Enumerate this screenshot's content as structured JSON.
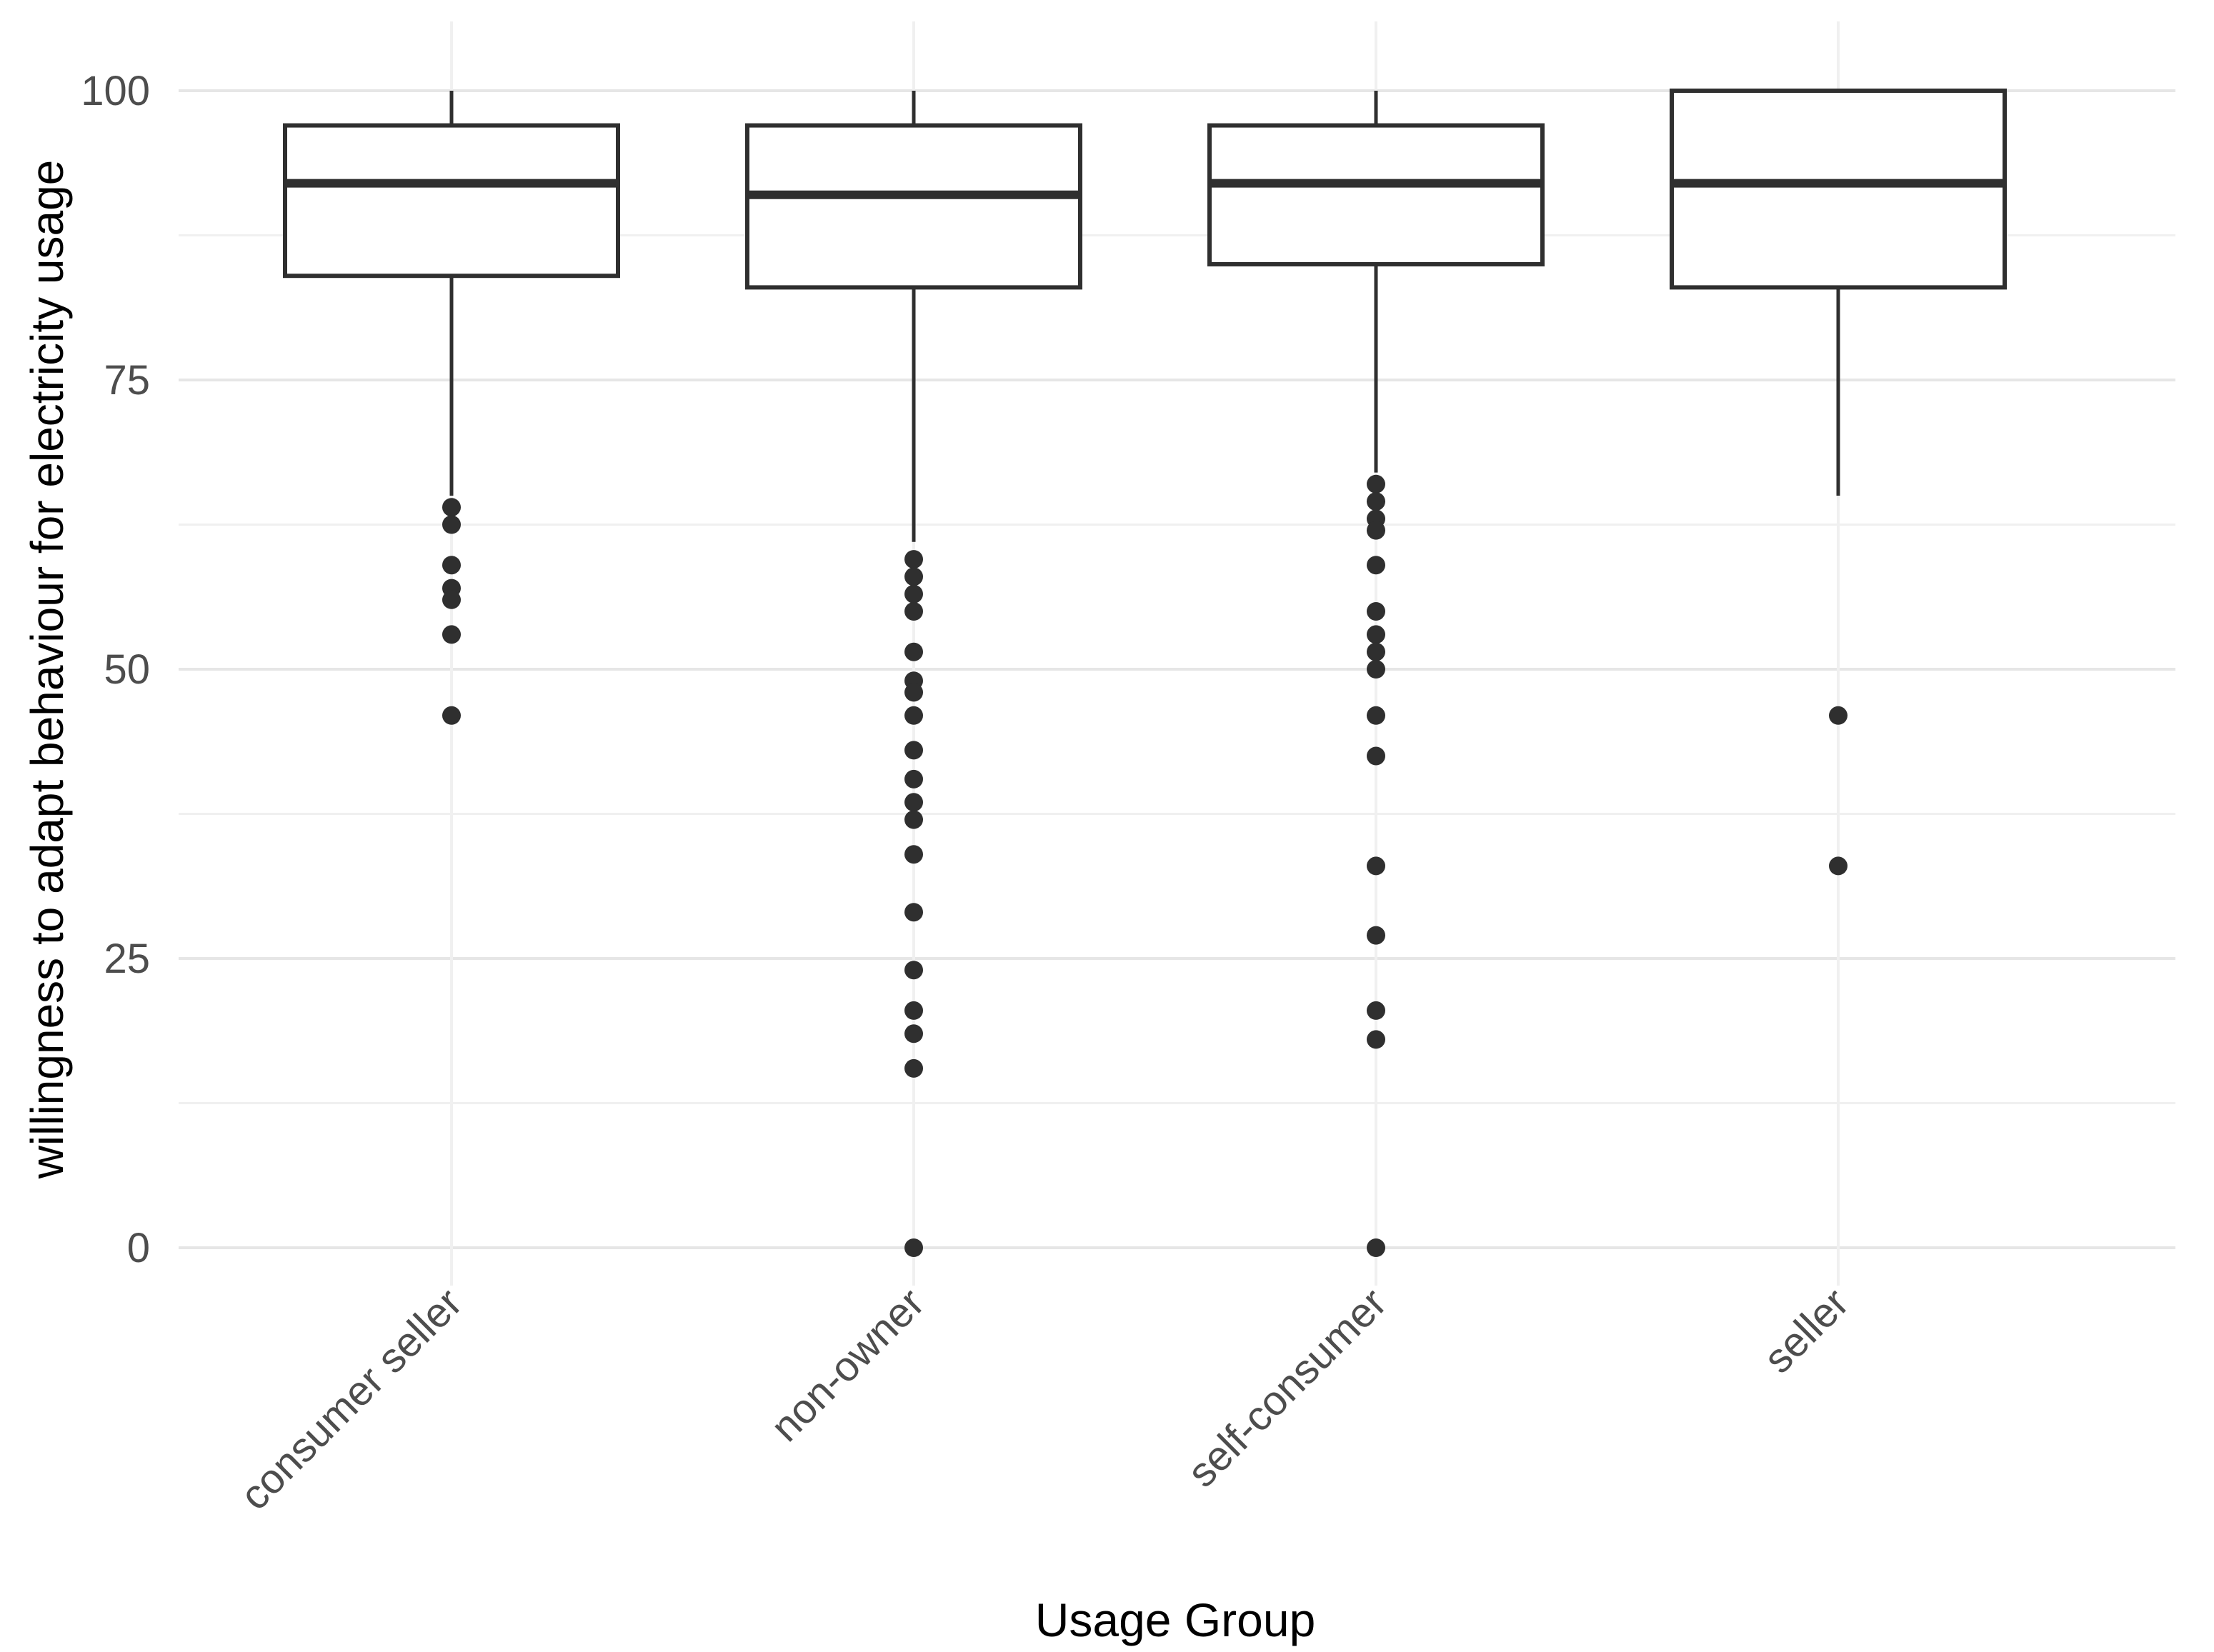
{
  "chart_data": {
    "type": "boxplot",
    "title": "",
    "xlabel": "Usage Group",
    "ylabel": "willingness to adapt behaviour for electricity usage",
    "ylim": [
      0,
      100
    ],
    "y_ticks": [
      0,
      25,
      50,
      75,
      100
    ],
    "y_minor_gridlines": [
      12.5,
      37.5,
      62.5,
      87.5
    ],
    "grid": "major-and-minor, horizontal only, plus faint vertical line per category",
    "legend": "none",
    "categories": [
      "consumer seller",
      "non-owner",
      "self-consumer",
      "seller"
    ],
    "groups": [
      {
        "label": "consumer seller",
        "q1": 84,
        "median": 92,
        "q3": 97,
        "whisker_low": 65,
        "whisker_high": 100,
        "outliers": [
          64,
          62.5,
          59,
          57,
          56,
          53,
          46
        ]
      },
      {
        "label": "non-owner",
        "q1": 83,
        "median": 91,
        "q3": 97,
        "whisker_low": 61,
        "whisker_high": 100,
        "outliers": [
          59.5,
          58,
          56.5,
          55,
          51.5,
          49,
          48,
          46,
          43,
          40.5,
          38.5,
          37,
          34,
          29,
          24,
          20.5,
          18.5,
          15.5,
          0
        ]
      },
      {
        "label": "self-consumer",
        "q1": 85,
        "median": 92,
        "q3": 97,
        "whisker_low": 67,
        "whisker_high": 100,
        "outliers": [
          66,
          64.5,
          63,
          62,
          59,
          55,
          53,
          51.5,
          50,
          46,
          42.5,
          33,
          27,
          20.5,
          18,
          0
        ]
      },
      {
        "label": "seller",
        "q1": 83,
        "median": 92,
        "q3": 100,
        "whisker_low": 65,
        "whisker_high": 100,
        "outliers": [
          46,
          33
        ]
      }
    ],
    "colors": {
      "background": "#ffffff",
      "box_fill": "#ffffff",
      "box_stroke": "#2f2f2f",
      "outlier_fill": "#2f2f2f",
      "grid_major": "#e6e6e6",
      "grid_minor": "#f0f0f0",
      "tick_label": "#4d4d4d",
      "axis_title": "#000000"
    }
  }
}
